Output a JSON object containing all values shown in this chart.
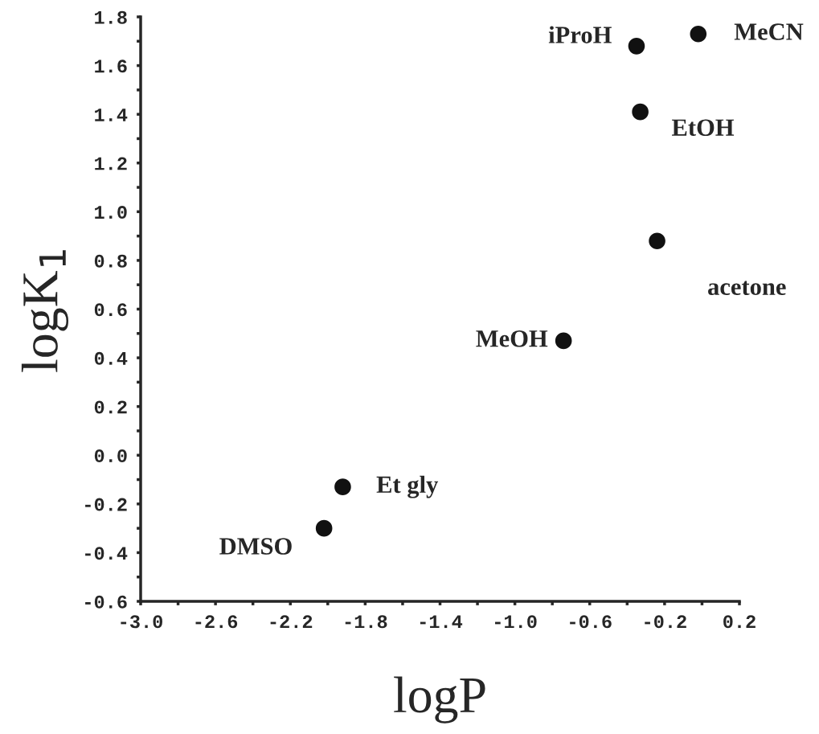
{
  "chart_data": {
    "type": "scatter",
    "xlabel": "logP",
    "ylabel": "logK$_{1}$",
    "x": [
      -0.02,
      -0.35,
      -0.33,
      -0.24,
      -0.74,
      -1.92,
      -2.02
    ],
    "values": [
      1.73,
      1.68,
      1.41,
      0.88,
      0.47,
      -0.13,
      -0.3
    ],
    "color": "#111111",
    "marker": "circle",
    "grid": false,
    "xlim": [
      -3.0,
      0.2
    ],
    "ylim": [
      -0.6,
      1.8
    ],
    "xticks": [
      {
        "value": -3,
        "label": "-3.0"
      },
      {
        "value": -2.8,
        "label": null
      },
      -2.6,
      {
        "value": -2.4,
        "label": null
      },
      -2.2,
      {
        "value": -2.0,
        "label": null
      },
      -1.8,
      {
        "value": -1.6,
        "label": null
      },
      -1.4,
      {
        "value": -1.2,
        "label": null
      },
      {
        "value": -1,
        "label": "-1.0"
      },
      {
        "value": -0.8,
        "label": null
      },
      -0.6,
      {
        "value": -0.4,
        "label": null
      },
      -0.2,
      {
        "value": 0.0,
        "label": null
      },
      0.2
    ],
    "yticks": [
      -0.6,
      {
        "value": -0.5,
        "label": null
      },
      -0.4,
      {
        "value": -0.3,
        "label": null
      },
      -0.2,
      {
        "value": -0.1,
        "label": null
      },
      {
        "value": 0,
        "label": "0.0"
      },
      {
        "value": 0.1,
        "label": null
      },
      0.2,
      {
        "value": 0.3,
        "label": null
      },
      0.4,
      {
        "value": 0.5,
        "label": null
      },
      0.6,
      {
        "value": 0.7,
        "label": null
      },
      0.8,
      {
        "value": 0.9,
        "label": null
      },
      {
        "value": 1,
        "label": "1.0"
      },
      {
        "value": 1.1,
        "label": null
      },
      1.2,
      {
        "value": 1.3,
        "label": null
      },
      1.4,
      {
        "value": 1.5,
        "label": null
      },
      1.6,
      {
        "value": 1.7,
        "label": null
      },
      1.8
    ],
    "annotations": [
      {
        "text": "MeCN",
        "x": -0.02,
        "y": 1.73
      },
      {
        "text": "iProH",
        "x": -0.35,
        "y": 1.68
      },
      {
        "text": "EtOH",
        "x": -0.33,
        "y": 1.41
      },
      {
        "text": "acetone",
        "x": -0.24,
        "y": 0.88
      },
      {
        "text": "MeOH",
        "x": -0.74,
        "y": 0.47
      },
      {
        "text": "Et gly",
        "x": -1.92,
        "y": -0.13
      },
      {
        "text": "DMSO",
        "x": -2.02,
        "y": -0.3
      }
    ]
  }
}
